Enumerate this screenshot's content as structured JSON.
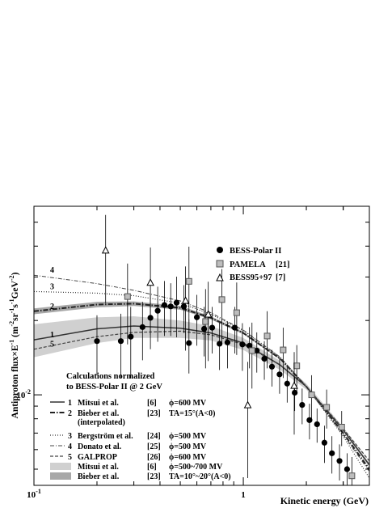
{
  "chart_data": {
    "type": "scatter",
    "xlabel": "Kinetic energy (GeV)",
    "ylabel": "Antiproton flux×E",
    "ylabel_sup1": "-1",
    "ylabel_mid": " (m",
    "ylabel_sup2": "-2",
    "ylabel_mid2": "sr",
    "ylabel_sup3": "-1",
    "ylabel_mid3": "s",
    "ylabel_sup4": "-1",
    "ylabel_mid4": "GeV",
    "ylabel_sup5": "-2",
    "ylabel_end": ")",
    "x_scale": "log",
    "y_scale": "log",
    "xlim": [
      0.1,
      4.0
    ],
    "ylim": [
      0.0043,
      0.058
    ],
    "x_ticks": [
      {
        "value": 0.1,
        "label": "10",
        "sup": "-1"
      },
      {
        "value": 1,
        "label": "1",
        "sup": ""
      }
    ],
    "y_ticks": [
      {
        "value": 0.01,
        "label": "10",
        "sup": "-2"
      }
    ],
    "legend": {
      "position": "top-right",
      "entries": [
        {
          "name": "BESS-Polar II",
          "ref": "",
          "marker": "filled-circle"
        },
        {
          "name": "PAMELA",
          "ref": "[21]",
          "marker": "gray-square"
        },
        {
          "name": "BESS95+97",
          "ref": "[7]",
          "marker": "open-triangle"
        }
      ]
    },
    "calc_heading": [
      "Calculations normalized",
      "to BESS-Polar II @ 2 GeV"
    ],
    "calc_legend": [
      {
        "num": "1",
        "name": "Mitsui et al.",
        "ref": "[6]",
        "param": "ϕ=600 MV",
        "style": "solid"
      },
      {
        "num": "2",
        "name": "Bieber et al.",
        "name2": "(interpolated)",
        "ref": "[23]",
        "param": "TA=15°(A<0)",
        "style": "dashdot-heavy"
      },
      {
        "num": "3",
        "name": "Bergström et al.",
        "ref": "[24]",
        "param": "ϕ=500 MV",
        "style": "dotted"
      },
      {
        "num": "4",
        "name": "Donato et al.",
        "ref": "[25]",
        "param": "ϕ=500 MV",
        "style": "dashdot"
      },
      {
        "num": "5",
        "name": "GALPROP",
        "ref": "[26]",
        "param": "ϕ=600 MV",
        "style": "dashed"
      },
      {
        "num": "",
        "name": "Mitsui et al.",
        "ref": "[6]",
        "param": "ϕ=500~700 MV",
        "style": "band-light"
      },
      {
        "num": "",
        "name": "Bieber et al.",
        "ref": "[23]",
        "param": "TA=10°~20°(A<0)",
        "style": "band-dark"
      }
    ],
    "curve_labels": [
      "4",
      "3",
      "2",
      "1",
      "5"
    ],
    "series": [
      {
        "name": "BESS-Polar II",
        "x": [
          0.2,
          0.26,
          0.29,
          0.33,
          0.36,
          0.39,
          0.42,
          0.45,
          0.48,
          0.52,
          0.55,
          0.6,
          0.65,
          0.71,
          0.77,
          0.84,
          0.91,
          0.99,
          1.07,
          1.16,
          1.26,
          1.37,
          1.49,
          1.62,
          1.76,
          1.91,
          2.07,
          2.25,
          2.44,
          2.65,
          2.88,
          3.13
        ],
        "y": [
          0.0165,
          0.0165,
          0.0172,
          0.0188,
          0.0205,
          0.0219,
          0.0231,
          0.0228,
          0.0236,
          0.0228,
          0.0162,
          0.0206,
          0.0185,
          0.0187,
          0.0161,
          0.0163,
          0.0187,
          0.016,
          0.0158,
          0.0151,
          0.014,
          0.013,
          0.0121,
          0.0111,
          0.0102,
          0.0091,
          0.0079,
          0.0076,
          0.0064,
          0.0058,
          0.0054,
          0.005
        ],
        "y_err": [
          0.0045,
          0.0048,
          0.0055,
          0.005,
          0.0052,
          0.0055,
          0.0058,
          0.0055,
          0.0065,
          0.005,
          0.004,
          0.0048,
          0.0042,
          0.004,
          0.0035,
          0.0035,
          0.004,
          0.0035,
          0.003,
          0.0028,
          0.0025,
          0.0022,
          0.002,
          0.0018,
          0.0016,
          0.0015,
          0.0013,
          0.0012,
          0.0011,
          0.001,
          0.0009,
          0.0008
        ]
      },
      {
        "name": "PAMELA",
        "x": [
          0.28,
          0.55,
          0.66,
          0.79,
          0.93,
          1.1,
          1.3,
          1.55,
          1.8,
          2.12,
          2.5,
          2.95,
          3.3
        ],
        "y": [
          0.025,
          0.0288,
          0.0198,
          0.0243,
          0.0215,
          0.0151,
          0.0173,
          0.0152,
          0.0131,
          0.01,
          0.0089,
          0.0074,
          0.0047
        ],
        "y_err": [
          0.009,
          0.011,
          0.007,
          0.008,
          0.007,
          0.0045,
          0.0045,
          0.0035,
          0.0028,
          0.002,
          0.0016,
          0.0012,
          0.0009
        ]
      },
      {
        "name": "BESS95+97",
        "x": [
          0.22,
          0.36,
          0.53,
          0.68,
          1.05,
          1.75
        ],
        "y": [
          0.0385,
          0.0285,
          0.0241,
          0.0212,
          0.0091,
          0.0109
        ],
        "y_err": [
          0.015,
          0.011,
          0.009,
          0.0075,
          0.0045,
          0.004
        ]
      }
    ],
    "curves": [
      {
        "num": "1",
        "style": "solid",
        "x": [
          0.1,
          0.2,
          0.3,
          0.5,
          0.7,
          1.0,
          1.5,
          2.0,
          3.0,
          4.0
        ],
        "y": [
          0.0167,
          0.0185,
          0.019,
          0.0186,
          0.0178,
          0.0162,
          0.0132,
          0.0108,
          0.0072,
          0.0052
        ]
      },
      {
        "num": "2",
        "style": "dashdot-heavy",
        "x": [
          0.1,
          0.2,
          0.3,
          0.5,
          0.7,
          1.0,
          1.5,
          2.0,
          3.0,
          4.0
        ],
        "y": [
          0.0218,
          0.0232,
          0.0234,
          0.0225,
          0.0205,
          0.0178,
          0.014,
          0.0108,
          0.007,
          0.005
        ]
      },
      {
        "num": "3",
        "style": "dotted",
        "x": [
          0.1,
          0.2,
          0.3,
          0.5,
          0.7,
          1.0,
          1.5,
          2.0,
          3.0,
          4.0
        ],
        "y": [
          0.0262,
          0.0258,
          0.0252,
          0.0235,
          0.0212,
          0.0182,
          0.0142,
          0.0108,
          0.0068,
          0.0046
        ]
      },
      {
        "num": "4",
        "style": "dashdot",
        "x": [
          0.1,
          0.2,
          0.3,
          0.5,
          0.7,
          1.0,
          1.5,
          2.0,
          3.0,
          4.0
        ],
        "y": [
          0.0305,
          0.0282,
          0.0265,
          0.024,
          0.0215,
          0.0183,
          0.0142,
          0.0108,
          0.0069,
          0.0049
        ]
      },
      {
        "num": "5",
        "style": "dashed",
        "x": [
          0.1,
          0.2,
          0.3,
          0.5,
          0.7,
          1.0,
          1.5,
          2.0,
          3.0,
          4.0
        ],
        "y": [
          0.0153,
          0.0172,
          0.0179,
          0.0181,
          0.0175,
          0.016,
          0.0132,
          0.0108,
          0.0073,
          0.0054
        ]
      }
    ],
    "bands": [
      {
        "name": "Mitsui et al. ϕ=500~700 MV",
        "color": "#d0d0d0",
        "x": [
          0.1,
          0.2,
          0.3,
          0.5,
          0.7,
          1.0,
          1.5,
          2.0,
          3.0,
          4.0
        ],
        "y_low": [
          0.0142,
          0.0162,
          0.017,
          0.017,
          0.0166,
          0.0152,
          0.0126,
          0.0105,
          0.0071,
          0.0051
        ],
        "y_high": [
          0.0193,
          0.0206,
          0.0208,
          0.02,
          0.019,
          0.017,
          0.0137,
          0.0111,
          0.0074,
          0.0053
        ]
      },
      {
        "name": "Bieber et al. TA=10°~20°(A<0)",
        "color": "#a8a8a8",
        "x": [
          0.1,
          0.2,
          0.3,
          0.5,
          0.7,
          1.0,
          1.5,
          2.0,
          3.0,
          4.0
        ],
        "y_low": [
          0.0212,
          0.0226,
          0.0229,
          0.0221,
          0.0202,
          0.0176,
          0.0139,
          0.0108,
          0.007,
          0.005
        ],
        "y_high": [
          0.0224,
          0.0238,
          0.0239,
          0.0229,
          0.0208,
          0.018,
          0.0141,
          0.0108,
          0.007,
          0.005
        ]
      }
    ]
  }
}
